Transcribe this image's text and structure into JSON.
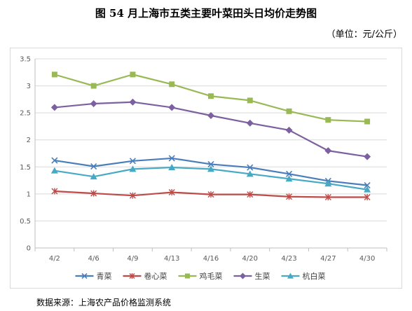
{
  "title": "图 54 月上海市五类主要叶菜田头日均价走势图",
  "unit": "（单位：元/公斤）",
  "source": "数据来源：上海农产品价格监测系统",
  "chart_data": {
    "type": "line",
    "categories": [
      "4/2",
      "4/6",
      "4/9",
      "4/13",
      "4/16",
      "4/20",
      "4/23",
      "4/27",
      "4/30"
    ],
    "ylim": [
      0,
      3.5
    ],
    "yticks": [
      "0",
      "0.5",
      "1",
      "1.5",
      "2",
      "2.5",
      "3",
      "3.5"
    ],
    "grid": true,
    "legend_position": "bottom",
    "series": [
      {
        "name": "青菜",
        "color": "#4a7ebb",
        "marker": "x",
        "values": [
          1.62,
          1.51,
          1.61,
          1.66,
          1.55,
          1.49,
          1.37,
          1.24,
          1.16
        ]
      },
      {
        "name": "卷心菜",
        "color": "#be4b48",
        "marker": "star",
        "values": [
          1.05,
          1.01,
          0.97,
          1.03,
          0.99,
          0.99,
          0.95,
          0.94,
          0.94
        ]
      },
      {
        "name": "鸡毛菜",
        "color": "#98b954",
        "marker": "square",
        "values": [
          3.21,
          3.0,
          3.21,
          3.03,
          2.81,
          2.73,
          2.53,
          2.37,
          2.34
        ]
      },
      {
        "name": "生菜",
        "color": "#7d60a0",
        "marker": "diamond",
        "values": [
          2.6,
          2.67,
          2.7,
          2.6,
          2.45,
          2.31,
          2.18,
          1.8,
          1.69
        ]
      },
      {
        "name": "杭白菜",
        "color": "#46aac5",
        "marker": "triangle",
        "values": [
          1.43,
          1.32,
          1.46,
          1.49,
          1.46,
          1.37,
          1.28,
          1.19,
          1.08
        ]
      }
    ]
  }
}
